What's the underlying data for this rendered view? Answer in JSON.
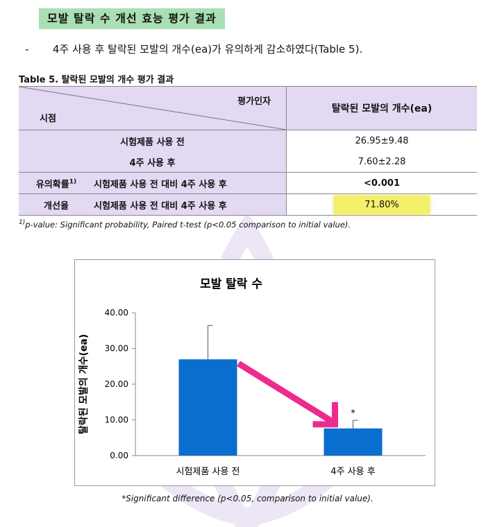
{
  "heading": "모발 탈락 수 개선 효능 평가 결과",
  "bullet": {
    "dash": "-",
    "text": "4주 사용 후 탈락된 모발의 개수(ea)가 유의하게 감소하였다(Table 5)."
  },
  "table": {
    "title": "Table 5. 탈락된 모발의 개수 평가 결과",
    "header": {
      "top_right": "평가인자",
      "bottom_left": "시점",
      "column": "탈락된 모발의 개수(ea)"
    },
    "rows": [
      {
        "label": "시험제품 사용 전",
        "value": "26.95±9.48"
      },
      {
        "label": "4주 사용 후",
        "value": "7.60±2.28"
      },
      {
        "label": "유의확률",
        "sup": "1)",
        "desc": "시험제품 사용 전 대비 4주 사용 후",
        "value": "<0.001"
      },
      {
        "label": "개선율",
        "desc": "시험제품 사용 전 대비 4주 사용 후",
        "value": "71.80%"
      }
    ],
    "footnote_sup": "1)",
    "footnote": "p-value: Significant probability, Paired t-test (p<0.05 comparison to initial value)."
  },
  "chart_data": {
    "type": "bar",
    "title": "모발 탈락 수",
    "ylabel": "탈락된 모발의 개수(ea)",
    "xlabel": "",
    "categories": [
      "시험제품 사용 전",
      "4주 사용 후"
    ],
    "values": [
      26.95,
      7.6
    ],
    "errors": [
      9.48,
      2.28
    ],
    "significance": [
      "",
      "*"
    ],
    "ylim": [
      0,
      40
    ],
    "yticks": [
      "0.00",
      "10.00",
      "20.00",
      "30.00",
      "40.00"
    ],
    "grid": false,
    "bar_color": "#0a6ed1",
    "arrow_color": "#ee2a8f"
  },
  "chart_note": "*Significant difference (p<0.05, comparison to initial value)."
}
